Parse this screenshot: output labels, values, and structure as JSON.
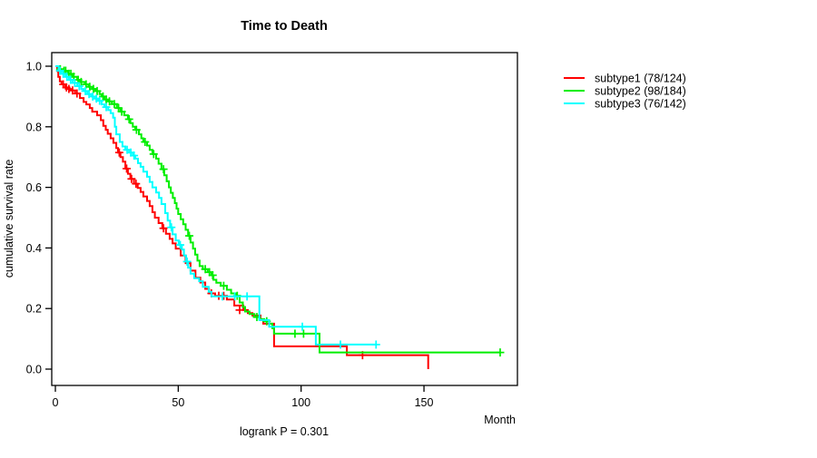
{
  "chart_data": {
    "type": "line",
    "subtype": "kaplan-meier-step",
    "title": "Time to Death",
    "xlabel": "Month",
    "ylabel": "cumulative survival rate",
    "footer": "logrank P = 0.301",
    "x_ticks": [
      0,
      50,
      100,
      150
    ],
    "y_ticks": [
      0.0,
      0.2,
      0.4,
      0.6,
      0.8,
      1.0
    ],
    "xlim": [
      0,
      188
    ],
    "ylim": [
      0.0,
      1.0
    ],
    "grid": "off",
    "legend_position": "right-outside",
    "axis_color": "#000000",
    "background": "#ffffff",
    "series": [
      {
        "name": "subtype1",
        "label": "subtype1 (78/124)",
        "events": 78,
        "total": 124,
        "color": "#ff0000",
        "end_month": 151.7,
        "steps": [
          [
            0,
            1.0
          ],
          [
            0.7,
            0.984
          ],
          [
            1.2,
            0.965
          ],
          [
            1.8,
            0.95
          ],
          [
            2.5,
            0.94
          ],
          [
            4,
            0.93
          ],
          [
            5,
            0.925
          ],
          [
            6,
            0.92
          ],
          [
            8,
            0.91
          ],
          [
            10,
            0.895
          ],
          [
            11.5,
            0.882
          ],
          [
            12.6,
            0.874
          ],
          [
            14,
            0.862
          ],
          [
            15,
            0.85
          ],
          [
            17,
            0.838
          ],
          [
            18.5,
            0.822
          ],
          [
            19.5,
            0.803
          ],
          [
            20.5,
            0.79
          ],
          [
            21.3,
            0.777
          ],
          [
            22.5,
            0.762
          ],
          [
            23.6,
            0.747
          ],
          [
            24.8,
            0.73
          ],
          [
            25.5,
            0.715
          ],
          [
            26.5,
            0.7
          ],
          [
            27.5,
            0.685
          ],
          [
            28.5,
            0.662
          ],
          [
            29.5,
            0.645
          ],
          [
            30.5,
            0.628
          ],
          [
            32,
            0.612
          ],
          [
            33.5,
            0.598
          ],
          [
            34.7,
            0.585
          ],
          [
            35.8,
            0.57
          ],
          [
            37.3,
            0.555
          ],
          [
            38.4,
            0.538
          ],
          [
            39.5,
            0.518
          ],
          [
            40.5,
            0.5
          ],
          [
            42,
            0.482
          ],
          [
            43.5,
            0.465
          ],
          [
            45,
            0.447
          ],
          [
            46.5,
            0.43
          ],
          [
            47.7,
            0.415
          ],
          [
            49,
            0.398
          ],
          [
            51,
            0.375
          ],
          [
            53,
            0.35
          ],
          [
            55,
            0.325
          ],
          [
            57,
            0.302
          ],
          [
            59,
            0.286
          ],
          [
            61,
            0.265
          ],
          [
            62.5,
            0.25
          ],
          [
            65,
            0.242
          ],
          [
            69.8,
            0.23
          ],
          [
            72.8,
            0.21
          ],
          [
            76.5,
            0.195
          ],
          [
            78.3,
            0.185
          ],
          [
            80.2,
            0.177
          ],
          [
            83.5,
            0.162
          ],
          [
            84.6,
            0.15
          ],
          [
            89,
            0.075
          ],
          [
            118.6,
            0.046
          ],
          [
            151.7,
            0.0
          ]
        ],
        "censor_ticks": [
          [
            3.2,
            0.94
          ],
          [
            4.5,
            0.93
          ],
          [
            5.5,
            0.925
          ],
          [
            7,
            0.92
          ],
          [
            8.8,
            0.91
          ],
          [
            26,
            0.715
          ],
          [
            29,
            0.662
          ],
          [
            31,
            0.628
          ],
          [
            32.8,
            0.612
          ],
          [
            44,
            0.465
          ],
          [
            63.5,
            0.25
          ],
          [
            66.5,
            0.242
          ],
          [
            68.5,
            0.242
          ],
          [
            75,
            0.195
          ],
          [
            125,
            0.046
          ]
        ]
      },
      {
        "name": "subtype2",
        "label": "subtype2 (98/184)",
        "events": 98,
        "total": 184,
        "color": "#00ee00",
        "end_month": 181,
        "steps": [
          [
            0,
            1.0
          ],
          [
            1.5,
            0.99
          ],
          [
            3,
            0.985
          ],
          [
            5,
            0.975
          ],
          [
            7,
            0.965
          ],
          [
            8.9,
            0.955
          ],
          [
            10,
            0.948
          ],
          [
            12,
            0.94
          ],
          [
            13.5,
            0.932
          ],
          [
            15,
            0.925
          ],
          [
            16.3,
            0.918
          ],
          [
            18,
            0.908
          ],
          [
            18.8,
            0.9
          ],
          [
            20,
            0.89
          ],
          [
            21.5,
            0.884
          ],
          [
            23,
            0.875
          ],
          [
            25,
            0.862
          ],
          [
            26.5,
            0.85
          ],
          [
            28,
            0.838
          ],
          [
            29.5,
            0.825
          ],
          [
            30.5,
            0.812
          ],
          [
            31.5,
            0.8
          ],
          [
            32.5,
            0.79
          ],
          [
            34,
            0.775
          ],
          [
            35,
            0.762
          ],
          [
            35.8,
            0.75
          ],
          [
            37.3,
            0.738
          ],
          [
            38.4,
            0.724
          ],
          [
            39.5,
            0.71
          ],
          [
            41,
            0.695
          ],
          [
            42,
            0.678
          ],
          [
            43.2,
            0.66
          ],
          [
            44.3,
            0.64
          ],
          [
            45.3,
            0.62
          ],
          [
            46.2,
            0.6
          ],
          [
            47,
            0.582
          ],
          [
            47.8,
            0.565
          ],
          [
            48.6,
            0.548
          ],
          [
            49.3,
            0.53
          ],
          [
            50,
            0.512
          ],
          [
            51,
            0.495
          ],
          [
            52,
            0.478
          ],
          [
            53,
            0.46
          ],
          [
            54,
            0.44
          ],
          [
            55,
            0.418
          ],
          [
            56,
            0.398
          ],
          [
            56.9,
            0.378
          ],
          [
            57.8,
            0.358
          ],
          [
            58.7,
            0.34
          ],
          [
            60,
            0.33
          ],
          [
            62,
            0.32
          ],
          [
            63.5,
            0.31
          ],
          [
            64.3,
            0.295
          ],
          [
            65.5,
            0.285
          ],
          [
            67.3,
            0.275
          ],
          [
            69.8,
            0.262
          ],
          [
            71.5,
            0.25
          ],
          [
            73.5,
            0.242
          ],
          [
            75,
            0.22
          ],
          [
            76.3,
            0.205
          ],
          [
            77.2,
            0.19
          ],
          [
            79,
            0.182
          ],
          [
            81,
            0.172
          ],
          [
            83,
            0.165
          ],
          [
            85,
            0.158
          ],
          [
            87,
            0.15
          ],
          [
            88.3,
            0.135
          ],
          [
            89,
            0.117
          ],
          [
            107.5,
            0.055
          ]
        ],
        "censor_ticks": [
          [
            2,
            0.99
          ],
          [
            3.5,
            0.985
          ],
          [
            4.2,
            0.985
          ],
          [
            5.5,
            0.975
          ],
          [
            6.3,
            0.975
          ],
          [
            7.5,
            0.965
          ],
          [
            9.3,
            0.955
          ],
          [
            10.5,
            0.948
          ],
          [
            12.5,
            0.94
          ],
          [
            14,
            0.932
          ],
          [
            15.5,
            0.925
          ],
          [
            17,
            0.918
          ],
          [
            19.4,
            0.9
          ],
          [
            20.7,
            0.89
          ],
          [
            22,
            0.884
          ],
          [
            24,
            0.875
          ],
          [
            25.7,
            0.862
          ],
          [
            27,
            0.85
          ],
          [
            30,
            0.825
          ],
          [
            33,
            0.79
          ],
          [
            36.5,
            0.75
          ],
          [
            40,
            0.71
          ],
          [
            44,
            0.66
          ],
          [
            54.5,
            0.44
          ],
          [
            61,
            0.33
          ],
          [
            62.7,
            0.32
          ],
          [
            64,
            0.31
          ],
          [
            68.5,
            0.275
          ],
          [
            74,
            0.242
          ],
          [
            82,
            0.172
          ],
          [
            86,
            0.158
          ],
          [
            97.5,
            0.117
          ],
          [
            101,
            0.117
          ],
          [
            181,
            0.055
          ]
        ]
      },
      {
        "name": "subtype3",
        "label": "subtype3 (76/142)",
        "events": 76,
        "total": 142,
        "color": "#00ffff",
        "end_month": 130.5,
        "steps": [
          [
            0,
            1.0
          ],
          [
            1.3,
            0.985
          ],
          [
            2.5,
            0.975
          ],
          [
            4,
            0.965
          ],
          [
            5.5,
            0.955
          ],
          [
            7,
            0.945
          ],
          [
            8.9,
            0.934
          ],
          [
            10.5,
            0.925
          ],
          [
            11.5,
            0.918
          ],
          [
            13,
            0.908
          ],
          [
            14.5,
            0.9
          ],
          [
            16,
            0.893
          ],
          [
            17.4,
            0.886
          ],
          [
            18.8,
            0.874
          ],
          [
            20,
            0.865
          ],
          [
            21.5,
            0.855
          ],
          [
            22.5,
            0.845
          ],
          [
            23.5,
            0.83
          ],
          [
            24.2,
            0.8
          ],
          [
            24.8,
            0.775
          ],
          [
            26.2,
            0.75
          ],
          [
            27.3,
            0.735
          ],
          [
            28.5,
            0.724
          ],
          [
            30,
            0.715
          ],
          [
            31.5,
            0.705
          ],
          [
            32.5,
            0.695
          ],
          [
            33.6,
            0.68
          ],
          [
            34.7,
            0.668
          ],
          [
            35.8,
            0.652
          ],
          [
            37.3,
            0.635
          ],
          [
            38.4,
            0.618
          ],
          [
            39.5,
            0.6
          ],
          [
            41,
            0.583
          ],
          [
            42.2,
            0.565
          ],
          [
            43.2,
            0.545
          ],
          [
            44.7,
            0.515
          ],
          [
            45.7,
            0.49
          ],
          [
            46.7,
            0.468
          ],
          [
            47.7,
            0.445
          ],
          [
            49,
            0.425
          ],
          [
            50.2,
            0.41
          ],
          [
            51.5,
            0.395
          ],
          [
            52.3,
            0.375
          ],
          [
            53.2,
            0.355
          ],
          [
            54,
            0.335
          ],
          [
            55,
            0.315
          ],
          [
            56.5,
            0.3
          ],
          [
            58.5,
            0.29
          ],
          [
            60,
            0.272
          ],
          [
            62.4,
            0.255
          ],
          [
            63.5,
            0.24
          ],
          [
            83,
            0.162
          ],
          [
            87,
            0.14
          ],
          [
            106,
            0.081
          ]
        ],
        "censor_ticks": [
          [
            1.9,
            0.985
          ],
          [
            3.2,
            0.975
          ],
          [
            4.7,
            0.965
          ],
          [
            6.2,
            0.955
          ],
          [
            7.9,
            0.945
          ],
          [
            9.7,
            0.934
          ],
          [
            12.2,
            0.918
          ],
          [
            13.7,
            0.908
          ],
          [
            15.2,
            0.9
          ],
          [
            16.7,
            0.893
          ],
          [
            18,
            0.886
          ],
          [
            20.7,
            0.865
          ],
          [
            29.2,
            0.724
          ],
          [
            30.7,
            0.715
          ],
          [
            32,
            0.705
          ],
          [
            47.2,
            0.468
          ],
          [
            50.8,
            0.41
          ],
          [
            53.6,
            0.355
          ],
          [
            68,
            0.24
          ],
          [
            73,
            0.24
          ],
          [
            78,
            0.24
          ],
          [
            100.5,
            0.14
          ],
          [
            116,
            0.081
          ],
          [
            130.5,
            0.081
          ]
        ]
      }
    ]
  }
}
